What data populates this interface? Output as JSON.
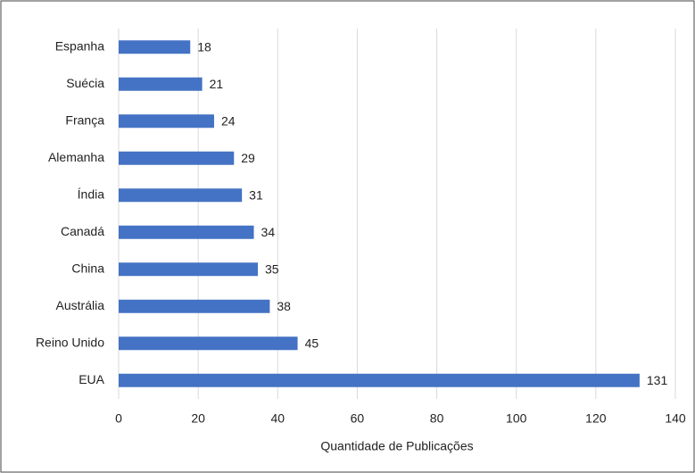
{
  "chart_data": {
    "type": "bar",
    "orientation": "horizontal",
    "x_label": "Quantidade de Publicações",
    "categories": [
      "Espanha",
      "Suécia",
      "França",
      "Alemanha",
      "Índia",
      "Canadá",
      "China",
      "Austrália",
      "Reino Unido",
      "EUA"
    ],
    "values": [
      18,
      21,
      24,
      29,
      31,
      34,
      35,
      38,
      45,
      131
    ],
    "color": "#4472c4",
    "xlim": [
      0,
      140
    ],
    "xticks": [
      0,
      20,
      40,
      60,
      80,
      100,
      120,
      140
    ],
    "grid": true
  }
}
